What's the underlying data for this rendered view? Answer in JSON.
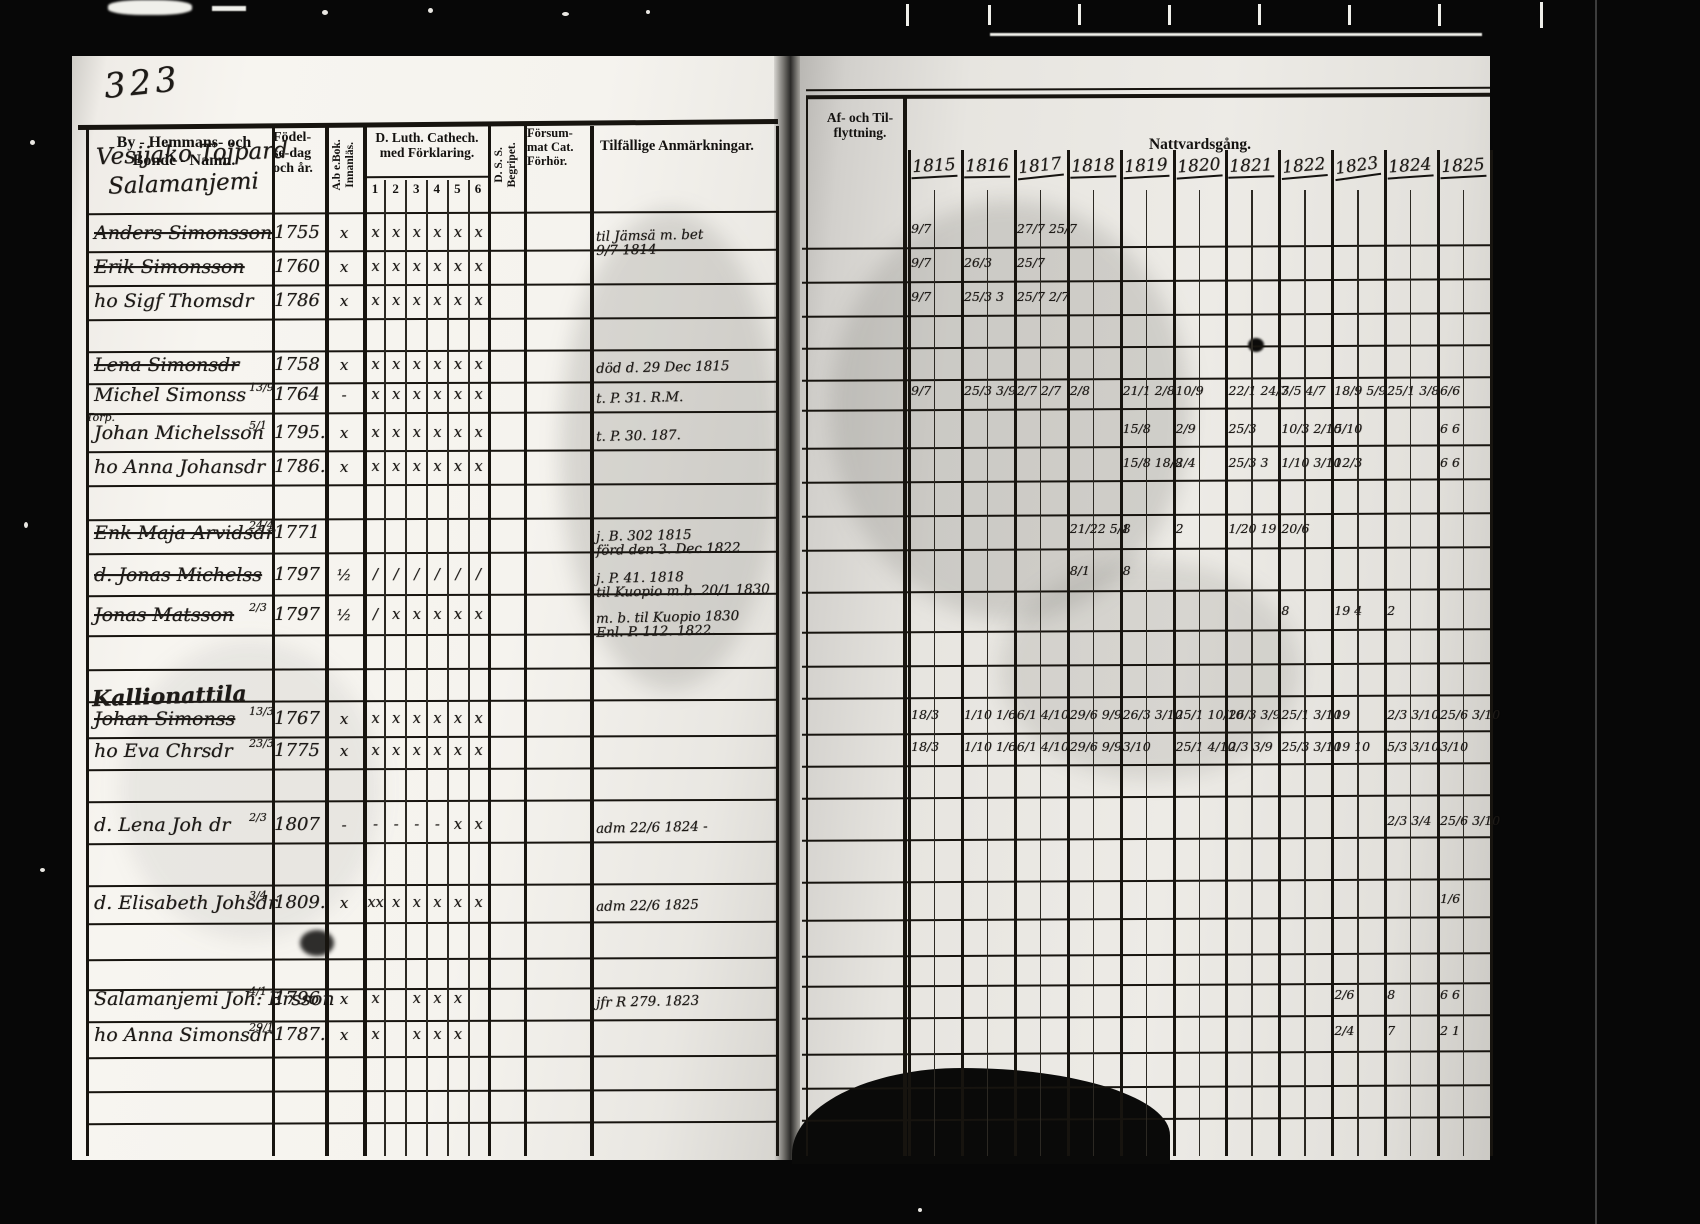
{
  "page_number": "323",
  "left_header": {
    "name_col": "By - Hemmans- och\nBonde - Namn.",
    "birth_col": "Födel-\nse-dag\noch år.",
    "innanlas_col": "A.b e.Bok.\nInnanläs.",
    "cat_col": "D. Luth. Cathech.\nmed Förklaring.",
    "cat_subcols": [
      "1",
      "2",
      "3",
      "4",
      "5",
      "6"
    ],
    "dss_col": "D. S. S.\nBegripet.",
    "forsum_col": "Försum-\nmat Cat.\nFörhör.",
    "anm_col": "Tilfällige Anmärkningar."
  },
  "right_header": {
    "flytt_col": "Af- och Til-\nflyttning.",
    "nattvard_col": "Nattvardsgång.",
    "years": [
      "1815",
      "1816",
      "1817",
      "1818",
      "1819",
      "1820",
      "1821",
      "1822",
      "1823",
      "1824",
      "1825"
    ]
  },
  "village_headings": [
    "Vesijako Tojpard",
    "Salamanjemi"
  ],
  "rows": [
    {
      "name": "Anders Simonsson",
      "struck": true,
      "birth": "1755",
      "innanlas": "x",
      "cat": [
        "x",
        "x",
        "x",
        "x",
        "x",
        "x"
      ],
      "note": "til Jämsä m. bet\n9/7 1814",
      "comm": [
        "9/7",
        "",
        "27/7 25/7",
        "",
        "",
        "",
        "",
        "",
        "",
        "",
        ""
      ]
    },
    {
      "name": "Erik Simonsson",
      "struck": true,
      "birth": "1760",
      "innanlas": "x",
      "cat": [
        "x",
        "x",
        "x",
        "x",
        "x",
        "x"
      ],
      "note": "",
      "comm": [
        "9/7",
        "26/3",
        "25/7",
        "",
        "",
        "",
        "",
        "",
        "",
        "",
        ""
      ]
    },
    {
      "name": "ho Sigf Thomsdr",
      "struck": false,
      "birth": "1786",
      "innanlas": "x",
      "cat": [
        "x",
        "x",
        "x",
        "x",
        "x",
        "x"
      ],
      "note": "",
      "comm": [
        "9/7",
        "25/3 3",
        "25/7 2/7",
        "",
        "",
        "",
        "",
        "",
        "",
        "",
        ""
      ]
    },
    {
      "name": "Lena Simonsdr",
      "struck": true,
      "birth": "1758",
      "innanlas": "x",
      "cat": [
        "x",
        "x",
        "x",
        "x",
        "x",
        "x"
      ],
      "note": "död d. 29 Dec 1815",
      "comm": [
        "",
        "",
        "",
        "",
        "",
        "",
        "",
        "",
        "",
        "",
        ""
      ]
    },
    {
      "name": "Michel Simonss",
      "struck": false,
      "birth_frac": "13/9",
      "birth": "1764",
      "innanlas": "-",
      "cat": [
        "x",
        "x",
        "x",
        "x",
        "x",
        "x"
      ],
      "note": "t. P. 31. R.M.",
      "comm": [
        "9/7",
        "25/3 3/9",
        "2/7 2/7",
        "2/8",
        "21/1 2/8",
        "10/9",
        "22/1 24/7",
        "3/5 4/7",
        "18/9 5/9",
        "25/1 3/8",
        "6/6"
      ]
    },
    {
      "name": "Johan Michelsson",
      "margin": "Torp.",
      "struck": false,
      "birth_frac": "5/1",
      "birth": "1795.",
      "innanlas": "x",
      "cat": [
        "x",
        "x",
        "x",
        "x",
        "x",
        "x"
      ],
      "note": "t. P. 30. 187.",
      "comm": [
        "",
        "",
        "",
        "",
        "15/8",
        "2/9",
        "25/3",
        "10/3 2/10",
        "5/10",
        "",
        "6 6"
      ]
    },
    {
      "name": "ho Anna Johansdr",
      "struck": false,
      "birth": "1786.",
      "innanlas": "x",
      "cat": [
        "x",
        "x",
        "x",
        "x",
        "x",
        "x"
      ],
      "note": "",
      "comm": [
        "",
        "",
        "",
        "",
        "15/8 18/8",
        "2/4",
        "25/3 3",
        "1/10 3/10",
        "12/3",
        "",
        "6 6"
      ]
    },
    {
      "name": "Enk Maja Arvidsdr",
      "struck": true,
      "birth_frac": "24/4",
      "birth": "1771",
      "innanlas": "",
      "cat": [
        "",
        "",
        "",
        "",
        "",
        ""
      ],
      "note": "j. B. 302 1815\nförd den 3. Dec 1822",
      "comm": [
        "",
        "",
        "",
        "21/22 5/1",
        "8",
        "2",
        "1/20 19",
        "20/6",
        "",
        "",
        ""
      ]
    },
    {
      "name": "d. Jonas Michelss",
      "struck": true,
      "birth": "1797",
      "innanlas": "½",
      "cat": [
        "/",
        "/",
        "/",
        "/",
        "/",
        "/"
      ],
      "note": "j. P. 41. 1818\ntil Kuopio m.b. 20/1 1830",
      "comm": [
        "",
        "",
        "",
        "8/1",
        "8",
        "",
        "",
        "",
        "",
        "",
        ""
      ]
    },
    {
      "name": "Jonas Matsson",
      "struck": true,
      "birth_frac": "2/3",
      "birth": "1797",
      "innanlas": "½",
      "cat": [
        "/",
        "x",
        "x",
        "x",
        "x",
        "x"
      ],
      "note": "m. b. til Kuopio 1830\nEnl. P. 112. 1822.",
      "comm": [
        "",
        "",
        "",
        "",
        "",
        "",
        "",
        "8",
        "19 4",
        "2",
        ""
      ]
    },
    {
      "type": "farm-heading",
      "name": "Kallionattila"
    },
    {
      "name": "Johan Simonss",
      "struck": true,
      "birth_frac": "13/3",
      "birth": "1767",
      "innanlas": "x",
      "cat": [
        "x",
        "x",
        "x",
        "x",
        "x",
        "x"
      ],
      "note": "",
      "comm": [
        "18/3",
        "1/10 1/6",
        "6/1 4/10",
        "29/6 9/9",
        "26/3 3/10",
        "25/1 10/10",
        "26/3 3/9",
        "25/1 3/10",
        "19",
        "2/3 3/10",
        "25/6 3/10"
      ]
    },
    {
      "name": "ho Eva Chrsdr",
      "struck": false,
      "birth_frac": "23/3",
      "birth": "1775",
      "innanlas": "x",
      "cat": [
        "x",
        "x",
        "x",
        "x",
        "x",
        "x"
      ],
      "note": "",
      "comm": [
        "18/3",
        "1/10 1/6",
        "6/1 4/10",
        "29/6 9/9",
        "3/10",
        "25/1 4/10",
        "2/3 3/9",
        "25/3 3/10",
        "19 10",
        "5/3 3/10",
        "3/10"
      ]
    },
    {
      "name": "d. Lena Joh dr",
      "struck": false,
      "birth_frac": "2/3",
      "birth": "1807",
      "innanlas": "-",
      "cat": [
        "-",
        "-",
        "-",
        "-",
        "x",
        "x"
      ],
      "note": "adm 22/6 1824 -",
      "comm": [
        "",
        "",
        "",
        "",
        "",
        "",
        "",
        "",
        "",
        "2/3 3/4",
        "25/6 3/10"
      ]
    },
    {
      "name": "d. Elisabeth Johsdr",
      "struck": false,
      "birth_frac": "3/4",
      "birth": "1809.",
      "innanlas": "x",
      "cat": [
        "xx",
        "x",
        "x",
        "x",
        "x",
        "x"
      ],
      "note": "adm 22/6 1825",
      "comm": [
        "",
        "",
        "",
        "",
        "",
        "",
        "",
        "",
        "",
        "",
        "1/6"
      ]
    },
    {
      "name": "Salamanjemi Joh: Ersson",
      "struck": false,
      "birth_frac": "4/1",
      "birth": "1796",
      "innanlas": "x",
      "cat": [
        "x",
        "",
        "x",
        "x",
        "x",
        ""
      ],
      "note": "jfr R 279. 1823",
      "comm": [
        "",
        "",
        "",
        "",
        "",
        "",
        "",
        "",
        "2/6",
        "8",
        "6 6"
      ]
    },
    {
      "name": "ho Anna Simonsdr",
      "struck": false,
      "birth_frac": "29/1",
      "birth": "1787.",
      "innanlas": "x",
      "cat": [
        "x",
        "",
        "x",
        "x",
        "x",
        ""
      ],
      "note": "",
      "comm": [
        "",
        "",
        "",
        "",
        "",
        "",
        "",
        "",
        "2/4",
        "7",
        "2 1"
      ]
    }
  ]
}
